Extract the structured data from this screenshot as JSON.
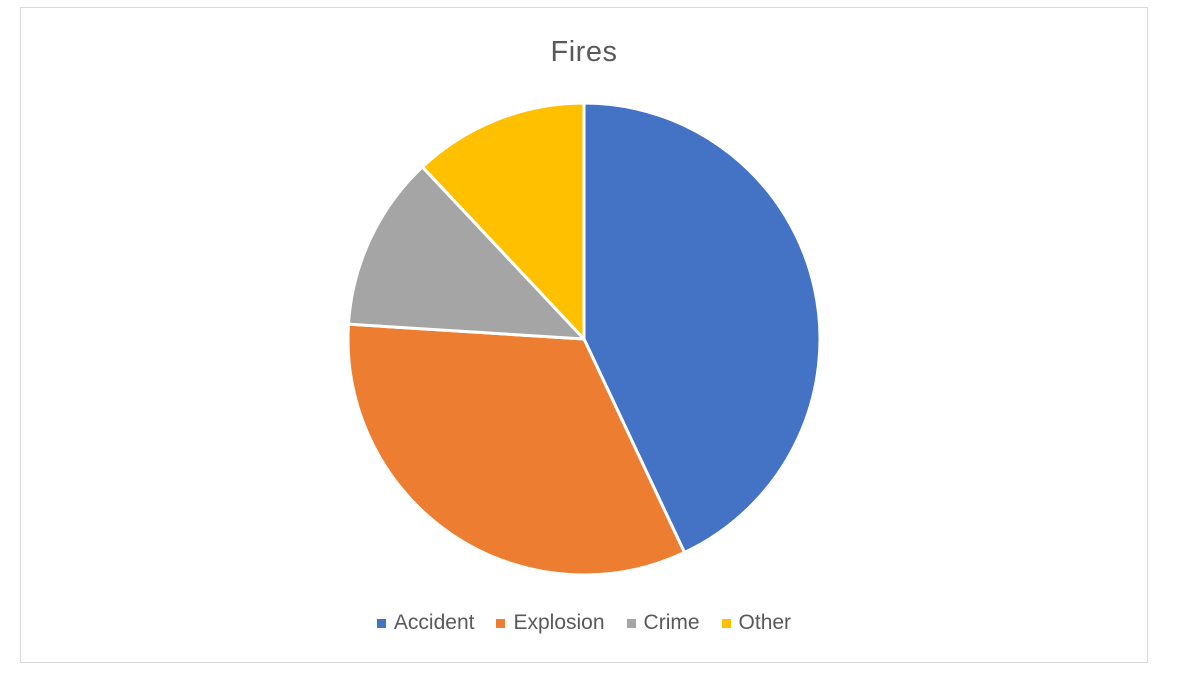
{
  "chart_data": {
    "type": "pie",
    "title": "Fires",
    "categories": [
      "Accident",
      "Explosion",
      "Crime",
      "Other"
    ],
    "values": [
      43,
      33,
      12,
      12
    ],
    "colors": [
      "#4472C4",
      "#ED7D31",
      "#A5A5A5",
      "#FFC000"
    ],
    "start_angle_deg": 0,
    "direction": "clockwise",
    "legend_position": "bottom",
    "slice_border_color": "#FFFFFF"
  }
}
